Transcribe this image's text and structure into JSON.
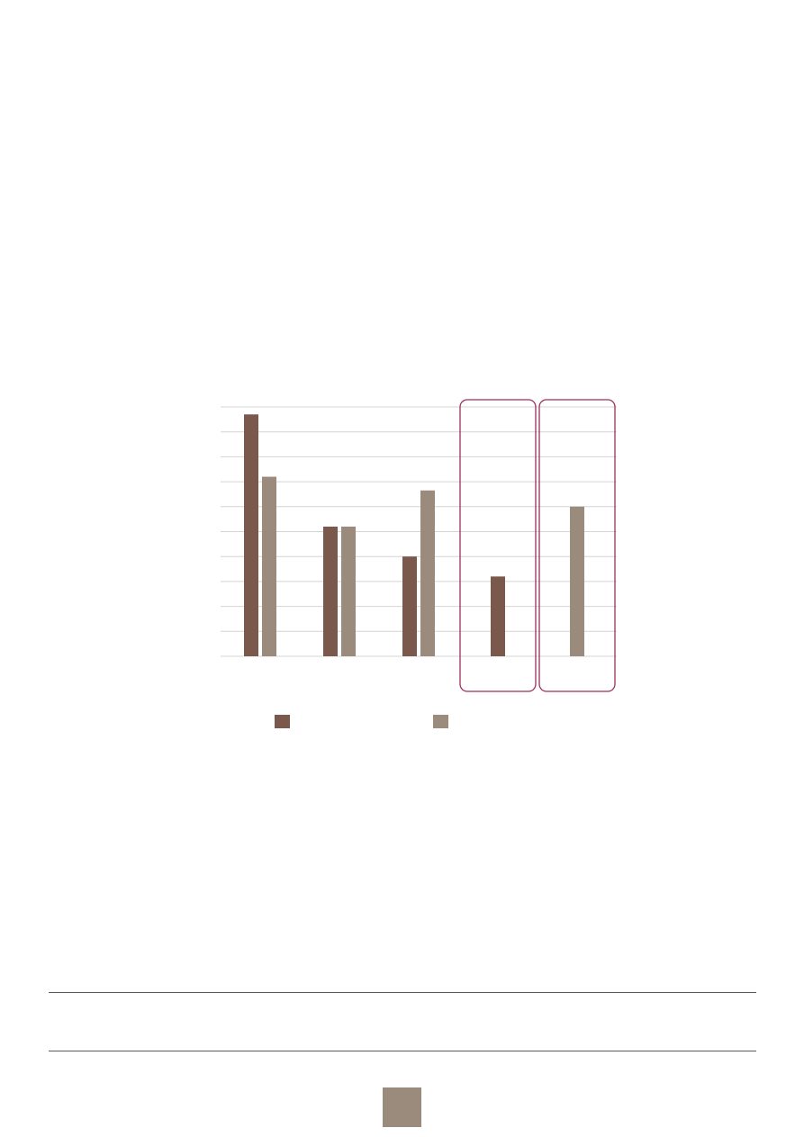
{
  "chart_data": {
    "type": "bar",
    "categories": [
      "",
      "",
      "",
      "",
      ""
    ],
    "series": [
      {
        "color": "#7a584c",
        "values": [
          9.7,
          5.2,
          4.0,
          3.2,
          null
        ]
      },
      {
        "color": "#9a8b7d",
        "values": [
          7.2,
          5.2,
          6.65,
          null,
          6.0
        ]
      }
    ],
    "ylim": [
      0,
      10
    ],
    "grid": true,
    "legend_placement": "bottom",
    "highlighted_categories": [
      3,
      4
    ],
    "highlight_color": "#9c2f5c"
  },
  "colors": {
    "gridline": "#d4d4d4",
    "rule": "#5a5a5a",
    "page_badge": "#9a8b7d"
  }
}
